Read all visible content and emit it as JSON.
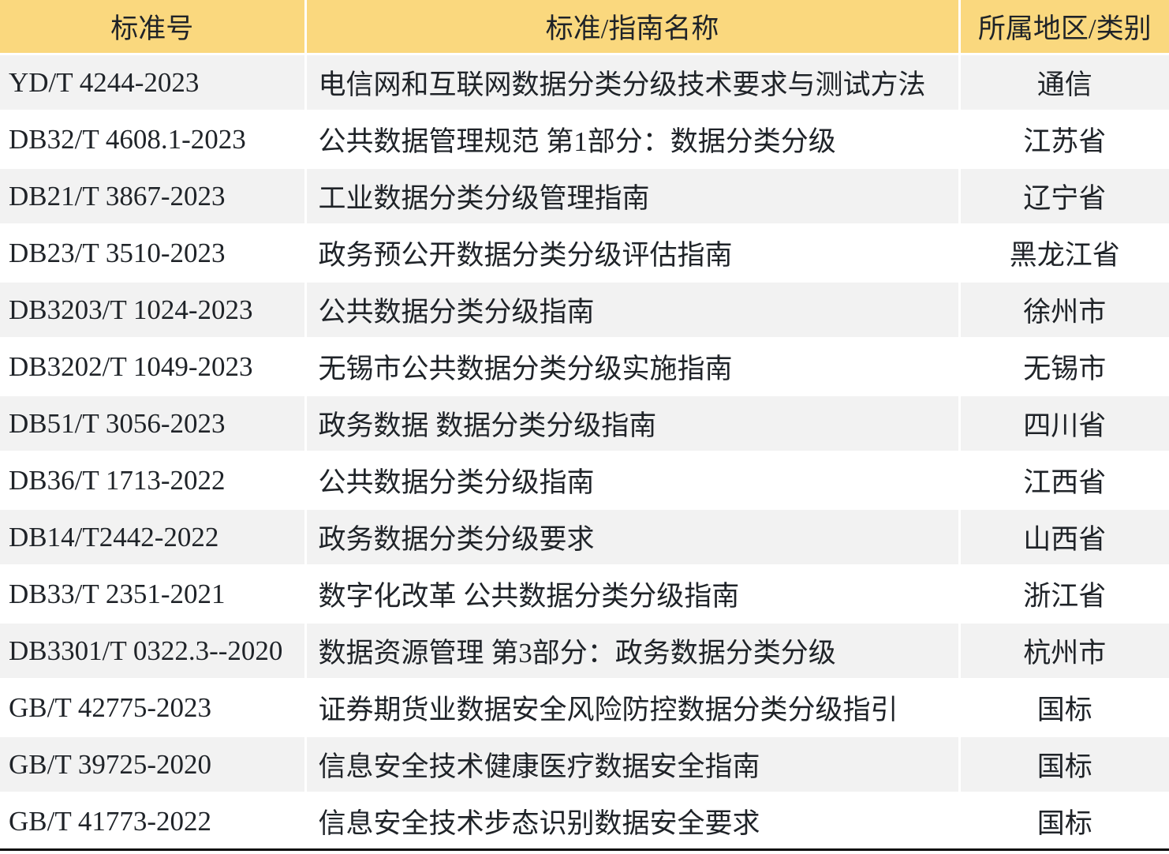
{
  "table": {
    "columns": [
      {
        "label": "标准号"
      },
      {
        "label": "标准/指南名称"
      },
      {
        "label": "所属地区/类别"
      }
    ],
    "rows": [
      {
        "code": "YD/T 4244-2023",
        "name": "电信网和互联网数据分类分级技术要求与测试方法",
        "region": "通信"
      },
      {
        "code": "DB32/T 4608.1-2023",
        "name": "公共数据管理规范 第1部分：数据分类分级",
        "region": "江苏省"
      },
      {
        "code": "DB21/T 3867-2023",
        "name": "工业数据分类分级管理指南",
        "region": "辽宁省"
      },
      {
        "code": "DB23/T 3510-2023",
        "name": "政务预公开数据分类分级评估指南",
        "region": "黑龙江省"
      },
      {
        "code": "DB3203/T 1024-2023",
        "name": "公共数据分类分级指南",
        "region": "徐州市"
      },
      {
        "code": "DB3202/T 1049-2023",
        "name": "无锡市公共数据分类分级实施指南",
        "region": "无锡市"
      },
      {
        "code": "DB51/T 3056-2023",
        "name": "政务数据 数据分类分级指南",
        "region": "四川省"
      },
      {
        "code": "DB36/T 1713-2022",
        "name": "公共数据分类分级指南",
        "region": "江西省"
      },
      {
        "code": "DB14/T2442-2022",
        "name": "政务数据分类分级要求",
        "region": "山西省"
      },
      {
        "code": "DB33/T 2351-2021",
        "name": "数字化改革 公共数据分类分级指南",
        "region": "浙江省"
      },
      {
        "code": "DB3301/T 0322.3--2020",
        "name": "数据资源管理 第3部分：政务数据分类分级",
        "region": "杭州市"
      },
      {
        "code": "GB/T 42775-2023",
        "name": "证券期货业数据安全风险防控数据分类分级指引",
        "region": "国标"
      },
      {
        "code": "GB/T 39725-2020",
        "name": "信息安全技术健康医疗数据安全指南",
        "region": "国标"
      },
      {
        "code": "GB/T 41773-2022",
        "name": "信息安全技术步态识别数据安全要求",
        "region": "国标"
      }
    ],
    "colors": {
      "header_bg": "#fad87e",
      "row_alt_bg": "#f2f2f2",
      "row_bg": "#ffffff",
      "divider": "#ffffff",
      "text": "#1f2328",
      "bottom_border": "#0a0a0a"
    }
  }
}
